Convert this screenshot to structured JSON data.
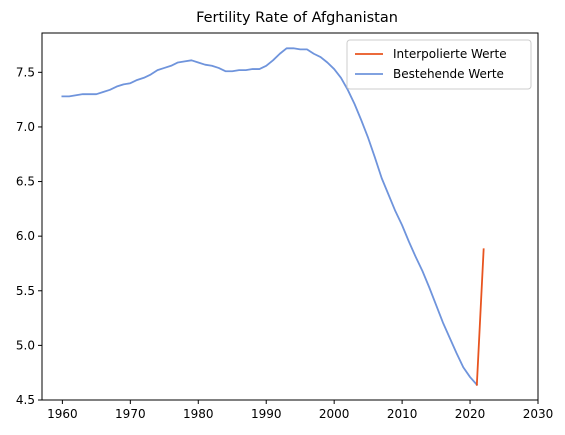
{
  "chart_data": {
    "type": "line",
    "title": "Fertility Rate of Afghanistan",
    "xlabel": "",
    "ylabel": "",
    "xlim": [
      1957,
      2030
    ],
    "ylim": [
      4.5,
      7.86
    ],
    "xticks": [
      1960,
      1970,
      1980,
      1990,
      2000,
      2010,
      2020,
      2030
    ],
    "yticks": [
      4.5,
      5.0,
      5.5,
      6.0,
      6.5,
      7.0,
      7.5
    ],
    "grid": false,
    "legend_position": "upper-right",
    "series": [
      {
        "name": "Interpolierte Werte",
        "color": "#e8541f",
        "x": [
          2021,
          2022
        ],
        "y": [
          4.64,
          5.88
        ]
      },
      {
        "name": "Bestehende Werte",
        "color": "#6f94dc",
        "x": [
          1960,
          1961,
          1962,
          1963,
          1964,
          1965,
          1966,
          1967,
          1968,
          1969,
          1970,
          1971,
          1972,
          1973,
          1974,
          1975,
          1976,
          1977,
          1978,
          1979,
          1980,
          1981,
          1982,
          1983,
          1984,
          1985,
          1986,
          1987,
          1988,
          1989,
          1990,
          1991,
          1992,
          1993,
          1994,
          1995,
          1996,
          1997,
          1998,
          1999,
          2000,
          2001,
          2002,
          2003,
          2004,
          2005,
          2006,
          2007,
          2008,
          2009,
          2010,
          2011,
          2012,
          2013,
          2014,
          2015,
          2016,
          2017,
          2018,
          2019,
          2020,
          2021
        ],
        "y": [
          7.28,
          7.28,
          7.29,
          7.3,
          7.3,
          7.3,
          7.32,
          7.34,
          7.37,
          7.39,
          7.4,
          7.43,
          7.45,
          7.48,
          7.52,
          7.54,
          7.56,
          7.59,
          7.6,
          7.61,
          7.59,
          7.57,
          7.56,
          7.54,
          7.51,
          7.51,
          7.52,
          7.52,
          7.53,
          7.53,
          7.56,
          7.61,
          7.67,
          7.72,
          7.72,
          7.71,
          7.71,
          7.67,
          7.64,
          7.59,
          7.53,
          7.45,
          7.34,
          7.21,
          7.06,
          6.9,
          6.72,
          6.53,
          6.38,
          6.23,
          6.1,
          5.95,
          5.81,
          5.68,
          5.53,
          5.37,
          5.21,
          5.07,
          4.93,
          4.8,
          4.71,
          4.64
        ]
      }
    ]
  }
}
